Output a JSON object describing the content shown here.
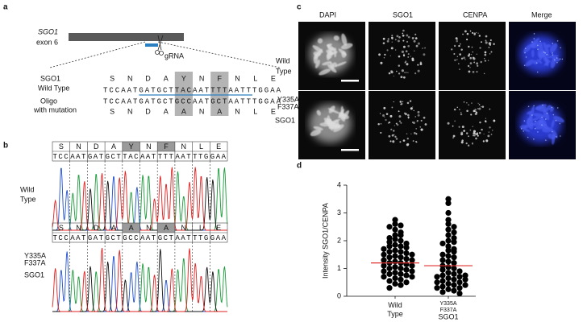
{
  "figure": {
    "a": {
      "label": "a",
      "gene": "SGO1",
      "exon": "exon 6",
      "grna": "gRNA",
      "wt_label": [
        "SGO1",
        "Wild Type"
      ],
      "wt_aa": [
        "S",
        "N",
        "D",
        "A",
        "Y",
        "N",
        "F",
        "N",
        "L",
        "E"
      ],
      "wt_codons": [
        "TCC",
        "AAT",
        "GAT",
        "GCT",
        "TAC",
        "AAT",
        "TTT",
        "AAT",
        "TTG",
        "GAA"
      ],
      "mut_label": [
        "Oligo",
        "with mutation"
      ],
      "mut_codons": [
        "TCC",
        "AAT",
        "GAT",
        "GCT",
        "GCC",
        "AAT",
        "GCT",
        "AAT",
        "TTG",
        "GAA"
      ],
      "mut_aa": [
        "S",
        "N",
        "D",
        "A",
        "A",
        "N",
        "A",
        "N",
        "L",
        "E"
      ]
    },
    "b": {
      "label": "b",
      "rows": [
        {
          "label_lines": [
            "Wild",
            "Type"
          ],
          "aa": [
            "S",
            "N",
            "D",
            "A",
            "Y",
            "N",
            "F",
            "N",
            "L",
            "E"
          ],
          "codons": [
            "TCC",
            "AAT",
            "GAT",
            "GCT",
            "TAC",
            "AAT",
            "TTT",
            "AAT",
            "TTG",
            "GAA"
          ]
        },
        {
          "label_lines": [
            "Y335A",
            "F337A"
          ],
          "protein": "SGO1",
          "aa": [
            "S",
            "N",
            "D",
            "A",
            "A",
            "N",
            "A",
            "N",
            "L",
            "E"
          ],
          "codons": [
            "TCC",
            "AAT",
            "GAT",
            "GCT",
            "GCC",
            "AAT",
            "GCT",
            "AAT",
            "TTG",
            "GAA"
          ]
        }
      ]
    },
    "c": {
      "label": "c",
      "columns": [
        "DAPI",
        "SGO1",
        "CENPA",
        "Merge"
      ],
      "rows": [
        {
          "label_lines": [
            "Wild",
            "Type"
          ]
        },
        {
          "label_lines": [
            "Y335A",
            "F337A"
          ],
          "protein": "SGO1"
        }
      ]
    }
  },
  "chart_data": {
    "type": "scatter",
    "panel_label": "d",
    "ylabel": "Intensity SGO1/CENPA",
    "categories": [
      "Wild Type",
      "Y335A F337A"
    ],
    "category_protein": "SGO1",
    "ylim": [
      0,
      4
    ],
    "yticks": [
      0,
      1,
      2,
      3,
      4
    ],
    "series": [
      {
        "color": "#000000",
        "values": [
          2.75,
          2.6,
          2.55,
          2.5,
          2.4,
          2.3,
          2.2,
          2.2,
          2.1,
          2.05,
          2.0,
          1.95,
          1.9,
          1.85,
          1.8,
          1.8,
          1.75,
          1.7,
          1.65,
          1.6,
          1.6,
          1.55,
          1.5,
          1.5,
          1.45,
          1.4,
          1.4,
          1.35,
          1.3,
          1.3,
          1.25,
          1.2,
          1.2,
          1.15,
          1.1,
          1.1,
          1.05,
          1.0,
          1.0,
          0.95,
          0.9,
          0.9,
          0.85,
          0.8,
          0.8,
          0.75,
          0.7,
          0.7,
          0.65,
          0.6,
          0.55,
          0.5,
          0.45,
          0.4,
          0.3
        ]
      },
      {
        "color": "#000000",
        "values": [
          3.5,
          3.35,
          3.0,
          2.75,
          2.6,
          2.5,
          2.4,
          2.3,
          2.2,
          2.1,
          2.0,
          1.95,
          1.9,
          1.8,
          1.7,
          1.65,
          1.6,
          1.5,
          1.45,
          1.4,
          1.3,
          1.25,
          1.2,
          1.1,
          1.05,
          1.0,
          0.95,
          0.9,
          0.85,
          0.8,
          0.75,
          0.7,
          0.7,
          0.65,
          0.6,
          0.55,
          0.5,
          0.5,
          0.45,
          0.4,
          0.35,
          0.3,
          0.3,
          0.25,
          0.2,
          0.15,
          0.1,
          0.75,
          0.6,
          0.4
        ]
      }
    ],
    "center_lines": [
      1.2,
      1.1
    ],
    "center_color": "#e03030"
  }
}
